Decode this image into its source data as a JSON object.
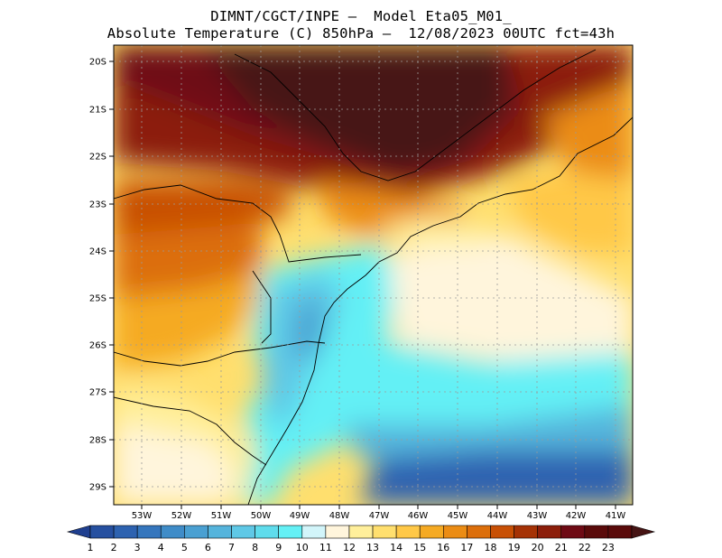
{
  "header": {
    "line1": "DIMNT/CGCT/INPE —  Model Eta05_M01_",
    "line2": "Absolute Temperature (C) 850hPa —  12/08/2023 00UTC fct=43h"
  },
  "map": {
    "lat_labels": [
      "20S",
      "21S",
      "22S",
      "23S",
      "24S",
      "25S",
      "26S",
      "27S",
      "28S",
      "29S"
    ],
    "lon_labels": [
      "53W",
      "52W",
      "51W",
      "50W",
      "49W",
      "48W",
      "47W",
      "46W",
      "45W",
      "44W",
      "43W",
      "42W",
      "41W"
    ],
    "extent": {
      "lon_min": -53.9,
      "lon_max": -40.6,
      "lat_min": -29.4,
      "lat_max": -19.7
    }
  },
  "colorbar": {
    "labels": [
      "1",
      "2",
      "3",
      "4",
      "5",
      "6",
      "7",
      "8",
      "9",
      "10",
      "11",
      "12",
      "13",
      "14",
      "15",
      "16",
      "17",
      "18",
      "19",
      "20",
      "21",
      "22",
      "23"
    ],
    "colors": [
      "#1f3f8f",
      "#2650a0",
      "#2d62b0",
      "#3576bd",
      "#3f8cc8",
      "#4aa0d2",
      "#55b4dc",
      "#5fc8e6",
      "#5fdcec",
      "#64f0f5",
      "#d2f5fa",
      "#fff5dc",
      "#ffef9b",
      "#ffdf6e",
      "#ffc847",
      "#f5aa23",
      "#eb8c14",
      "#dc6e0a",
      "#c85005",
      "#a53205",
      "#8c1e0a",
      "#6e0a14",
      "#5a0a0a",
      "#461414"
    ]
  }
}
